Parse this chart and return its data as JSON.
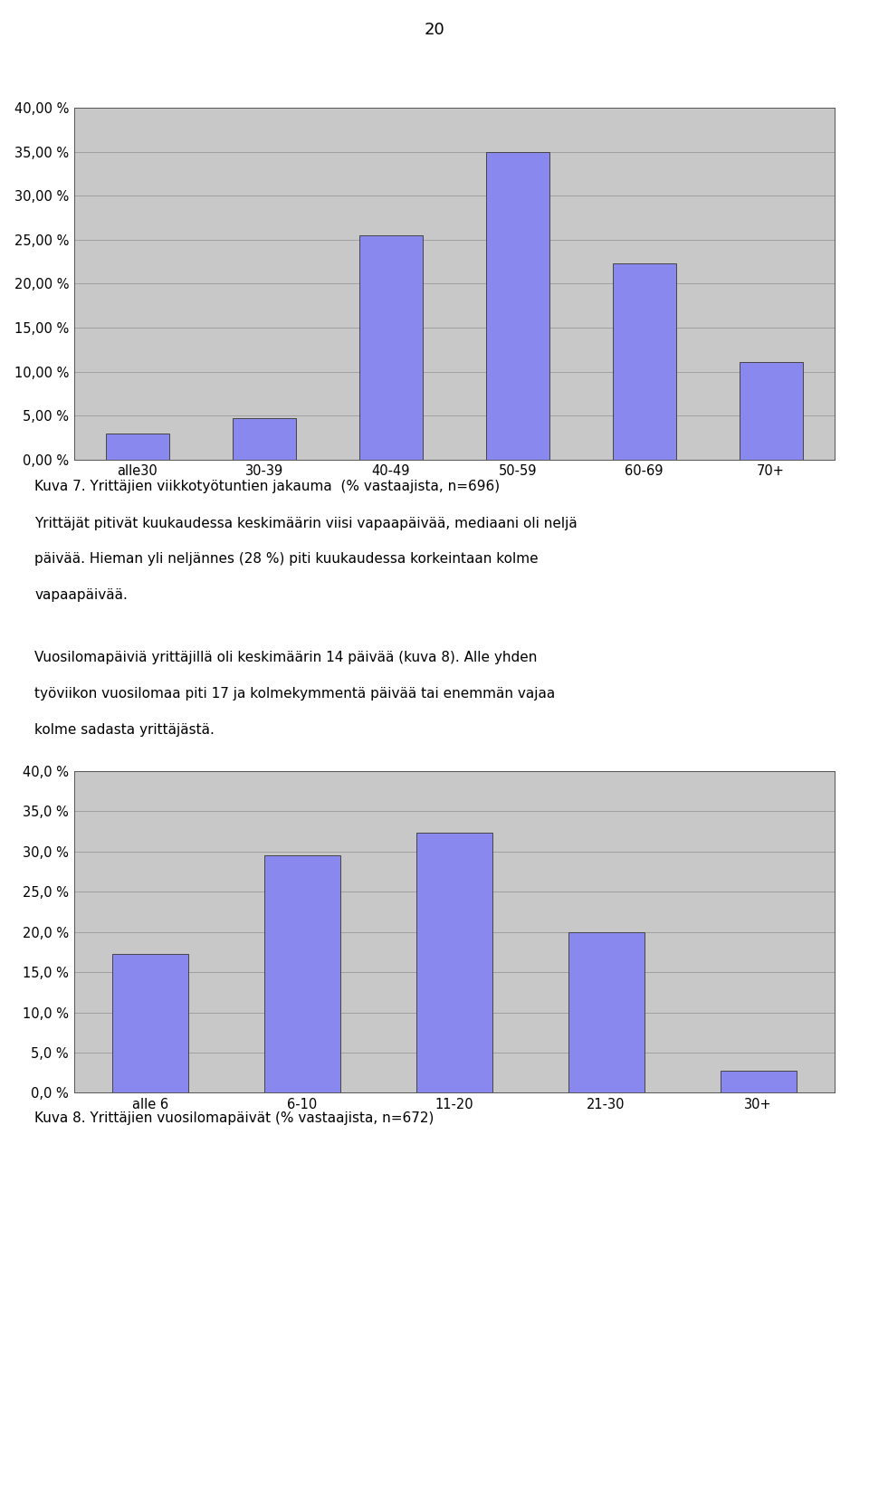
{
  "page_number": "20",
  "chart1": {
    "categories": [
      "alle30",
      "30-39",
      "40-49",
      "50-59",
      "60-69",
      "70+"
    ],
    "values": [
      3.0,
      4.7,
      25.5,
      35.0,
      22.3,
      11.1
    ],
    "ylim": [
      0,
      40
    ],
    "yticks": [
      0,
      5.0,
      10.0,
      15.0,
      20.0,
      25.0,
      30.0,
      35.0,
      40.0
    ],
    "ytick_labels": [
      "0,00 %",
      "5,00 %",
      "10,00 %",
      "15,00 %",
      "20,00 %",
      "25,00 %",
      "30,00 %",
      "35,00 %",
      "40,00 %"
    ],
    "bar_color": "#8888ee",
    "bar_edgecolor": "#444444",
    "bg_color": "#c8c8c8",
    "caption": "Kuva 7. Yrittäjien viikkotyötuntien jakauma  (% vastaajista, n=696)"
  },
  "para1_line1": "Yrittäjät pitivät kuukaudessa keskimäärin viisi vapaapäivää, mediaani oli neljä",
  "para1_line2": "päivää. Hieman yli neljännes (28 %) piti kuukaudessa korkeintaan kolme",
  "para1_line3": "vapaapäivää.",
  "para2_line1": "Vuosilomapäiviä yrittäjillä oli keskimäärin 14 päivää (kuva 8). Alle yhden",
  "para2_line2": "työviikon vuosilomaa piti 17 ja kolmekymmentä päivää tai enemmän vajaa",
  "para2_line3": "kolme sadasta yrittäjästä.",
  "chart2": {
    "categories": [
      "alle 6",
      "6-10",
      "11-20",
      "21-30",
      "30+"
    ],
    "values": [
      17.3,
      29.5,
      32.3,
      20.0,
      2.8
    ],
    "ylim": [
      0,
      40
    ],
    "yticks": [
      0,
      5.0,
      10.0,
      15.0,
      20.0,
      25.0,
      30.0,
      35.0,
      40.0
    ],
    "ytick_labels": [
      "0,0 %",
      "5,0 %",
      "10,0 %",
      "15,0 %",
      "20,0 %",
      "25,0 %",
      "30,0 %",
      "35,0 %",
      "40,0 %"
    ],
    "bar_color": "#8888ee",
    "bar_edgecolor": "#444444",
    "bg_color": "#c8c8c8",
    "caption": "Kuva 8. Yrittäjien vuosilomapäivät (% vastaajista, n=672)"
  },
  "figure_bg": "#ffffff",
  "font_family": "DejaVu Sans",
  "font_size_ticks": 10.5,
  "font_size_caption": 11,
  "font_size_text": 11,
  "font_size_page": 13
}
